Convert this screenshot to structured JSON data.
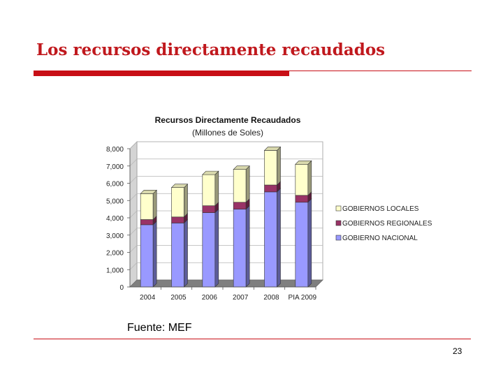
{
  "slide": {
    "title": "Los recursos directamente recaudados",
    "source": "Fuente: MEF",
    "page_number": "23"
  },
  "colors": {
    "accent": "#c80f16",
    "gobierno_nacional": "#9999ff",
    "gobiernos_regionales": "#993366",
    "gobiernos_locales": "#ffffcc"
  },
  "chart_data": {
    "type": "bar",
    "stacked": true,
    "three_d": true,
    "title": "Recursos Directamente Recaudados",
    "subtitle": "(Millones de Soles)",
    "categories": [
      "2004",
      "2005",
      "2006",
      "2007",
      "2008",
      "PIA 2009"
    ],
    "yticks": [
      "0",
      "1,000",
      "2,000",
      "3,000",
      "4,000",
      "5,000",
      "6,000",
      "7,000",
      "8,000"
    ],
    "ylim": [
      0,
      8000
    ],
    "grid": true,
    "legend_position": "right",
    "series": [
      {
        "name": "GOBIERNO NACIONAL",
        "color": "#9999ff",
        "values": [
          3600,
          3700,
          4300,
          4500,
          5500,
          4900
        ]
      },
      {
        "name": "GOBIERNOS REGIONALES",
        "color": "#993366",
        "values": [
          300,
          350,
          400,
          400,
          400,
          400
        ]
      },
      {
        "name": "GOBIERNOS LOCALES",
        "color": "#ffffcc",
        "values": [
          1500,
          1700,
          1800,
          1900,
          2000,
          1800
        ]
      }
    ],
    "legend_order": [
      2,
      1,
      0
    ]
  }
}
